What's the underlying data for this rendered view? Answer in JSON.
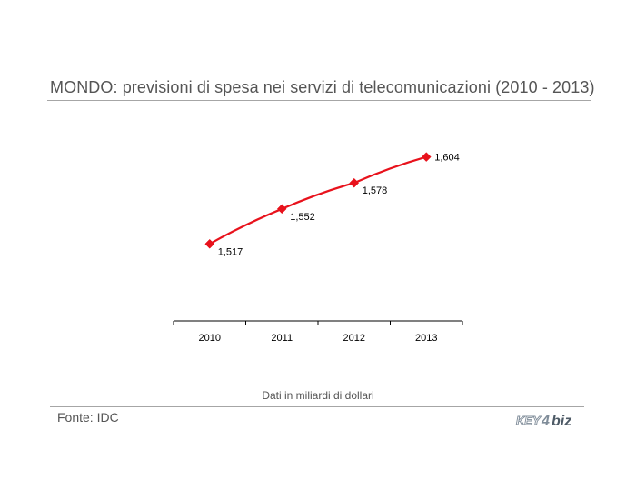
{
  "header": {
    "title": "MONDO: previsioni di spesa nei servizi di telecomunicazioni (2010 - 2013)"
  },
  "note": "Dati in miliardi di dollari",
  "footer": {
    "source": "Fonte: IDC",
    "logo_text": "KEY4biz"
  },
  "colors": {
    "series": "#e8121c",
    "text": "#555555",
    "rule": "#a6a6a6"
  },
  "chart_data": {
    "type": "line",
    "categories": [
      "2010",
      "2011",
      "2012",
      "2013"
    ],
    "series": [
      {
        "values": [
          1517,
          1552,
          1578,
          1604
        ],
        "labels": [
          "1,517",
          "1,552",
          "1,578",
          "1,604"
        ]
      }
    ],
    "ylim": [
      1440,
      1650
    ],
    "grid": false,
    "legend": "none",
    "marker": "diamond"
  }
}
